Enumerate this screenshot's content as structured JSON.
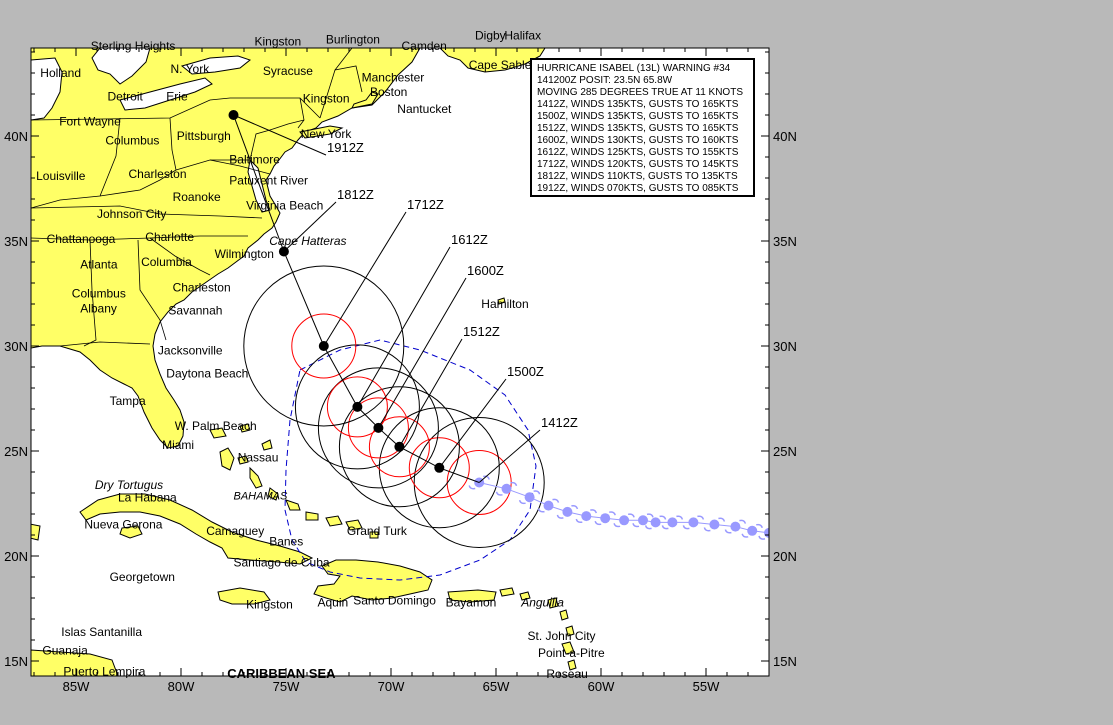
{
  "advisory": {
    "title": "HURRICANE ISABEL (13L) WARNING #34",
    "posit": "141200Z POSIT: 23.5N 65.8W",
    "motion": "MOVING 285 DEGREES TRUE AT 11 KNOTS",
    "forecasts": [
      "1412Z, WINDS 135KTS, GUSTS TO 165KTS",
      "1500Z, WINDS 135KTS, GUSTS TO 165KTS",
      "1512Z, WINDS 135KTS, GUSTS TO 165KTS",
      "1600Z, WINDS 130KTS, GUSTS TO 160KTS",
      "1612Z, WINDS 125KTS, GUSTS TO 155KTS",
      "1712Z, WINDS 120KTS, GUSTS TO 145KTS",
      "1812Z, WINDS 110KTS, GUSTS TO 135KTS",
      "1912Z, WINDS 070KTS, GUSTS TO 085KTS"
    ]
  },
  "axes": {
    "lat_labels": [
      "40N",
      "35N",
      "30N",
      "25N",
      "20N",
      "15N"
    ],
    "lon_labels": [
      "85W",
      "80W",
      "75W",
      "70W",
      "65W",
      "60W",
      "55W"
    ]
  },
  "forecast_track": [
    {
      "label": "1412Z",
      "lat": 23.5,
      "lon": 65.8
    },
    {
      "label": "1500Z",
      "lat": 24.2,
      "lon": 67.7
    },
    {
      "label": "1512Z",
      "lat": 25.2,
      "lon": 69.6
    },
    {
      "label": "1600Z",
      "lat": 26.1,
      "lon": 70.6
    },
    {
      "label": "1612Z",
      "lat": 27.1,
      "lon": 71.6
    },
    {
      "label": "1712Z",
      "lat": 30.0,
      "lon": 73.2
    },
    {
      "label": "1812Z",
      "lat": 34.5,
      "lon": 75.1
    },
    {
      "label": "1912Z",
      "lat": 41.0,
      "lon": 77.5
    }
  ],
  "past_track": [
    {
      "lat": 21.1,
      "lon": 52.0
    },
    {
      "lat": 21.2,
      "lon": 52.8
    },
    {
      "lat": 21.4,
      "lon": 53.6
    },
    {
      "lat": 21.5,
      "lon": 54.6
    },
    {
      "lat": 21.6,
      "lon": 55.6
    },
    {
      "lat": 21.6,
      "lon": 56.6
    },
    {
      "lat": 21.6,
      "lon": 57.4
    },
    {
      "lat": 21.7,
      "lon": 58.0
    },
    {
      "lat": 21.7,
      "lon": 58.9
    },
    {
      "lat": 21.8,
      "lon": 59.8
    },
    {
      "lat": 21.9,
      "lon": 60.7
    },
    {
      "lat": 22.1,
      "lon": 61.6
    },
    {
      "lat": 22.4,
      "lon": 62.5
    },
    {
      "lat": 22.8,
      "lon": 63.4
    },
    {
      "lat": 23.2,
      "lon": 64.5
    },
    {
      "lat": 23.5,
      "lon": 65.8
    }
  ],
  "places": [
    {
      "name": "Sterling Heights",
      "lat": 44.1,
      "lon": 84.3
    },
    {
      "name": "Holland",
      "lat": 42.8,
      "lon": 86.7
    },
    {
      "name": "Detroit",
      "lat": 41.7,
      "lon": 83.5
    },
    {
      "name": "Erie",
      "lat": 41.7,
      "lon": 80.7
    },
    {
      "name": "N. York",
      "lat": 43.0,
      "lon": 80.5
    },
    {
      "name": "Kingston",
      "lat": 44.3,
      "lon": 76.5
    },
    {
      "name": "Burlington",
      "lat": 44.4,
      "lon": 73.1
    },
    {
      "name": "Camden",
      "lat": 44.1,
      "lon": 69.5
    },
    {
      "name": "Syracuse",
      "lat": 42.9,
      "lon": 76.1
    },
    {
      "name": "Manchester",
      "lat": 42.6,
      "lon": 71.4
    },
    {
      "name": "Boston",
      "lat": 41.9,
      "lon": 71.0
    },
    {
      "name": "Kingston",
      "lat": 41.6,
      "lon": 74.2
    },
    {
      "name": "Nantucket",
      "lat": 41.1,
      "lon": 69.7
    },
    {
      "name": "Digby",
      "lat": 44.6,
      "lon": 66.0
    },
    {
      "name": "Halifax",
      "lat": 44.6,
      "lon": 64.6
    },
    {
      "name": "Cape Sable",
      "lat": 43.2,
      "lon": 66.3
    },
    {
      "name": "Fort Wayne",
      "lat": 40.5,
      "lon": 85.8
    },
    {
      "name": "Columbus",
      "lat": 39.6,
      "lon": 83.6
    },
    {
      "name": "Pittsburgh",
      "lat": 39.8,
      "lon": 80.2
    },
    {
      "name": "New York",
      "lat": 39.9,
      "lon": 74.3
    },
    {
      "name": "Baltimore",
      "lat": 38.7,
      "lon": 77.7
    },
    {
      "name": "Louisville",
      "lat": 37.9,
      "lon": 86.9
    },
    {
      "name": "Charleston",
      "lat": 38.0,
      "lon": 82.5
    },
    {
      "name": "Patuxent River",
      "lat": 37.7,
      "lon": 77.7
    },
    {
      "name": "Roanoke",
      "lat": 36.9,
      "lon": 80.4
    },
    {
      "name": "Virginia Beach",
      "lat": 36.5,
      "lon": 76.9
    },
    {
      "name": "Johnson City",
      "lat": 36.1,
      "lon": 84.0
    },
    {
      "name": "Chattanooga",
      "lat": 34.9,
      "lon": 86.4
    },
    {
      "name": "Charlotte",
      "lat": 35.0,
      "lon": 81.7
    },
    {
      "name": "Atlanta",
      "lat": 33.7,
      "lon": 84.8
    },
    {
      "name": "Columbia",
      "lat": 33.8,
      "lon": 81.9
    },
    {
      "name": "Wilmington",
      "lat": 34.2,
      "lon": 78.4
    },
    {
      "name": "Charleston",
      "lat": 32.6,
      "lon": 80.4
    },
    {
      "name": "Columbus",
      "lat": 32.3,
      "lon": 85.2
    },
    {
      "name": "Savannah",
      "lat": 31.5,
      "lon": 80.6
    },
    {
      "name": "Albany",
      "lat": 31.6,
      "lon": 84.8
    },
    {
      "name": "Jacksonville",
      "lat": 29.6,
      "lon": 81.1
    },
    {
      "name": "Daytona Beach",
      "lat": 28.5,
      "lon": 80.7
    },
    {
      "name": "Tampa",
      "lat": 27.2,
      "lon": 83.4
    },
    {
      "name": "W. Palm Beach",
      "lat": 26.0,
      "lon": 80.3
    },
    {
      "name": "Miami",
      "lat": 25.1,
      "lon": 80.9
    },
    {
      "name": "Nassau",
      "lat": 24.5,
      "lon": 77.3
    },
    {
      "name": "La Habana",
      "lat": 22.6,
      "lon": 83.0
    },
    {
      "name": "Nueva Gerona",
      "lat": 21.3,
      "lon": 84.6
    },
    {
      "name": "Camaguey",
      "lat": 21.0,
      "lon": 78.8
    },
    {
      "name": "Banes",
      "lat": 20.5,
      "lon": 75.8
    },
    {
      "name": "Grand Turk",
      "lat": 21.0,
      "lon": 72.1
    },
    {
      "name": "Santiago de Cuba",
      "lat": 19.5,
      "lon": 77.5
    },
    {
      "name": "Georgetown",
      "lat": 18.8,
      "lon": 83.4
    },
    {
      "name": "Kingston",
      "lat": 17.5,
      "lon": 76.9
    },
    {
      "name": "Aquin",
      "lat": 17.6,
      "lon": 73.5
    },
    {
      "name": "Santo Domingo",
      "lat": 17.7,
      "lon": 71.8
    },
    {
      "name": "Bayamon",
      "lat": 17.6,
      "lon": 67.4
    },
    {
      "name": "St. John City",
      "lat": 16.0,
      "lon": 63.5
    },
    {
      "name": "Point-a-Pitre",
      "lat": 15.2,
      "lon": 63.0
    },
    {
      "name": "Roseau",
      "lat": 14.2,
      "lon": 62.6
    },
    {
      "name": "Islas Santanilla",
      "lat": 16.2,
      "lon": 85.7
    },
    {
      "name": "Guanaja",
      "lat": 15.3,
      "lon": 86.6
    },
    {
      "name": "Puerto Lempira",
      "lat": 14.3,
      "lon": 85.6
    },
    {
      "name": "Hamilton",
      "lat": 31.8,
      "lon": 65.7
    }
  ],
  "italic_places": [
    {
      "name": "Cape Hatteras",
      "lat": 34.8,
      "lon": 75.8
    },
    {
      "name": "Dry Tortugus",
      "lat": 23.2,
      "lon": 84.1
    },
    {
      "name": "Anguilla",
      "lat": 17.6,
      "lon": 63.8
    }
  ],
  "regions": [
    {
      "name": "BAHAMAS",
      "lat": 22.7,
      "lon": 77.5
    }
  ],
  "sea": [
    {
      "name": "CARIBBEAN SEA",
      "lat": 14.2,
      "lon": 77.8
    }
  ],
  "colors": {
    "land": "#ffff66",
    "ocean": "#ffffff",
    "frame": "#b9b9b9",
    "wind_ring_outer": "#000000",
    "wind_ring_inner": "#ff0000",
    "danger_area": "#0000cc",
    "past_track": "#9999ff"
  }
}
